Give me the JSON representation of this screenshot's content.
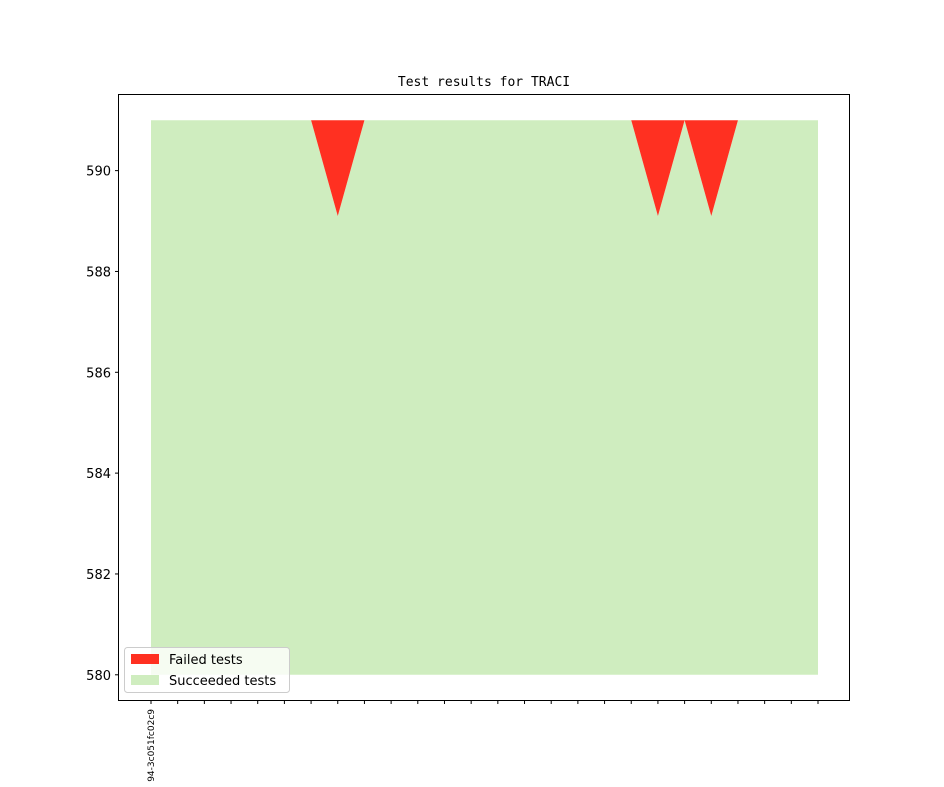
{
  "chart_data": {
    "type": "area",
    "title": "Test results for TRACI",
    "xlabel": "",
    "ylabel": "",
    "ylim": [
      579.5,
      591.5
    ],
    "yticks": [
      580,
      582,
      584,
      586,
      588,
      590
    ],
    "x_count": 26,
    "x_tick_labels": [
      "94-3c051fc02c9"
    ],
    "series": [
      {
        "name": "Failed tests",
        "color": "#ff3021",
        "values": [
          0,
          0,
          0,
          0,
          0,
          0,
          0,
          1.9,
          0,
          0,
          0,
          0,
          0,
          0,
          0,
          0,
          0,
          0,
          0,
          1.9,
          0,
          1.9,
          0,
          0,
          0,
          0
        ]
      },
      {
        "name": "Succeeded tests",
        "color": "#cfedbf",
        "values": [
          591,
          591,
          591,
          591,
          591,
          591,
          591,
          589.1,
          591,
          591,
          591,
          591,
          591,
          591,
          591,
          591,
          591,
          591,
          591,
          589.1,
          591,
          589.1,
          591,
          591,
          591,
          591
        ]
      }
    ],
    "baseline": 580,
    "total": 591,
    "legend_position": "lower-left",
    "grid": false
  }
}
